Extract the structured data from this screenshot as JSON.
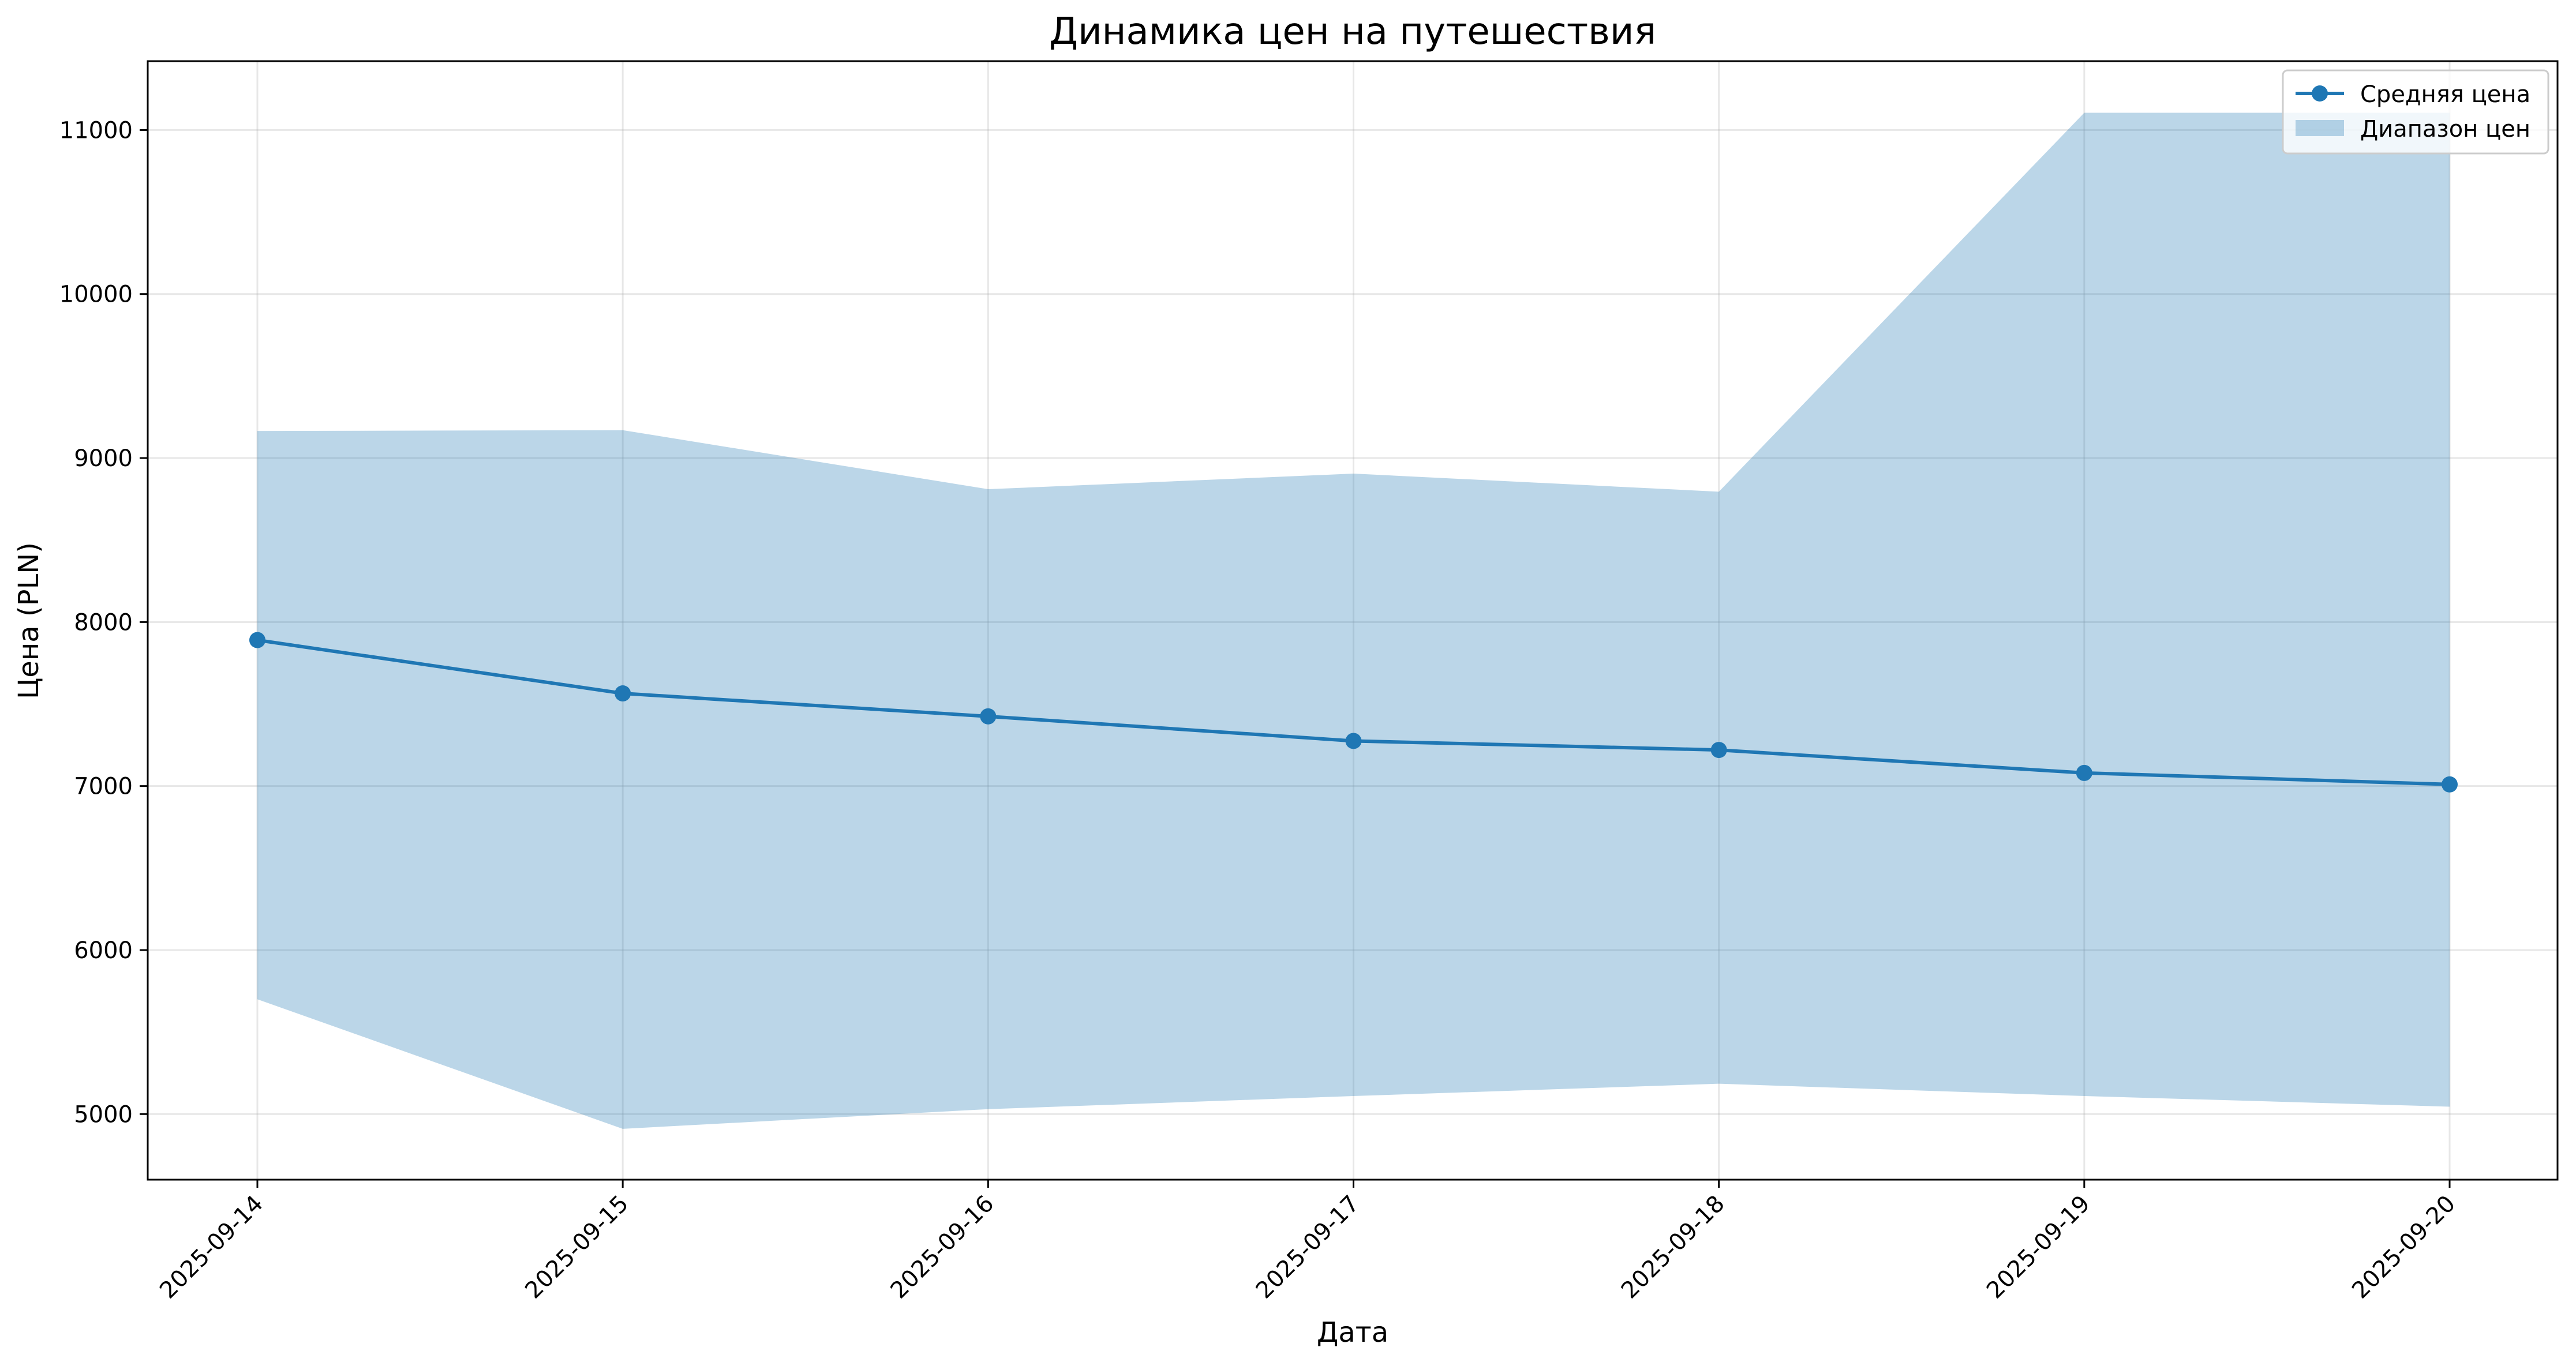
{
  "chart_data": {
    "type": "line",
    "title": "Динамика цен на путешествия",
    "xlabel": "Дата",
    "ylabel": "Цена (PLN)",
    "categories": [
      "2025-09-14",
      "2025-09-15",
      "2025-09-16",
      "2025-09-17",
      "2025-09-18",
      "2025-09-19",
      "2025-09-20"
    ],
    "series": [
      {
        "name": "Средняя цена",
        "type": "line",
        "color": "#1f77b4",
        "marker": "circle",
        "values": [
          7890,
          7565,
          7425,
          7275,
          7220,
          7080,
          7010
        ]
      }
    ],
    "band": {
      "name": "Диапазон цен",
      "type": "area",
      "color": "#1f77b4",
      "alpha": 0.3,
      "lower": [
        5700,
        4910,
        5030,
        5110,
        5185,
        5110,
        5045
      ],
      "upper": [
        9165,
        9170,
        8810,
        8905,
        8795,
        11105,
        11105
      ]
    },
    "yticks": [
      5000,
      6000,
      7000,
      8000,
      9000,
      10000,
      11000
    ],
    "ylim": [
      4600,
      11420
    ],
    "grid": true,
    "legend": "top-right"
  }
}
